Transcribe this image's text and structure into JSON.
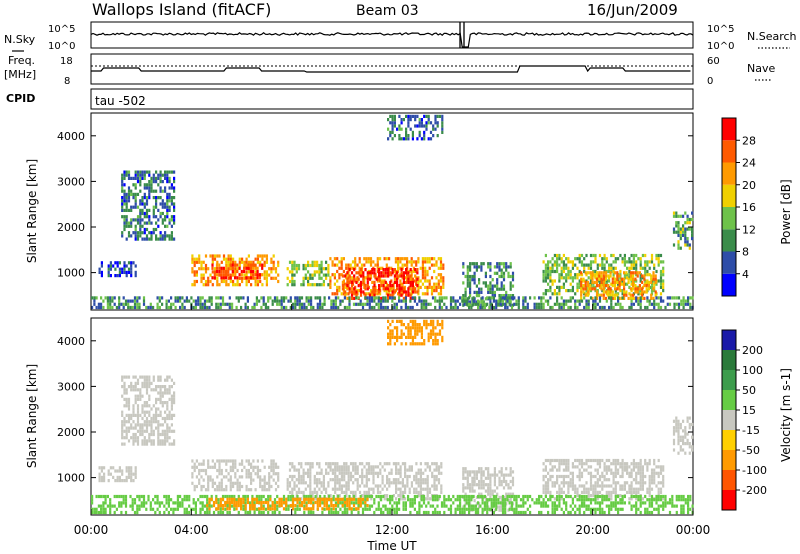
{
  "header": {
    "site": "Wallops Island (fitACF)",
    "beam": "Beam 03",
    "date": "16/Jun/2009"
  },
  "status": {
    "nsky_label": "N.Sky",
    "nsearch_label": "N.Search",
    "noise_ticks": [
      "10^5",
      "10^0"
    ],
    "freq_label_1": "Freq.",
    "freq_label_2": "[MHz]",
    "freq_ticks": [
      "18",
      "8"
    ],
    "nave_label": "Nave",
    "nave_ticks": [
      "60",
      "0"
    ],
    "cpid_label": "CPID",
    "cpid_value": "tau -502"
  },
  "colors": {
    "power_scale": [
      "#0000ff",
      "#2e4da8",
      "#3a8c4a",
      "#6ec24a",
      "#f0d000",
      "#ff9a00",
      "#ff5a00",
      "#ff0000"
    ],
    "velocity_scale": [
      "#1a1aa8",
      "#2a7a3a",
      "#3c9c4c",
      "#66cc44",
      "#c8c8c0",
      "#ffd000",
      "#ff9a00",
      "#ff5500",
      "#ff0000"
    ]
  },
  "chart_data": [
    {
      "type": "line",
      "panel": "noise",
      "series": [
        {
          "name": "N.Sky"
        },
        {
          "name": "N.Search"
        }
      ],
      "xlim": [
        "00:00",
        "24:00"
      ]
    },
    {
      "type": "line",
      "panel": "frequency-nave",
      "series": [
        {
          "name": "Freq."
        },
        {
          "name": "Nave"
        }
      ],
      "ylim_freq": [
        8,
        18
      ],
      "ylim_nave": [
        0,
        60
      ],
      "xlim": [
        "00:00",
        "24:00"
      ]
    },
    {
      "type": "heatmap",
      "panel": "power",
      "ylabel": "Slant Range [km]",
      "yticks": [
        1000,
        2000,
        3000,
        4000
      ],
      "ylim": [
        180,
        4500
      ],
      "colorbar_label": "Power [dB]",
      "colorbar_ticks": [
        "28",
        "24",
        "20",
        "16",
        "12",
        "8",
        "4"
      ],
      "blobs": [
        {
          "t0": 0.3,
          "t1": 1.8,
          "r0": 900,
          "r1": 1250,
          "value": 6
        },
        {
          "t0": 1.2,
          "t1": 3.3,
          "r0": 1700,
          "r1": 3200,
          "value": 8
        },
        {
          "t0": 4.0,
          "t1": 7.5,
          "r0": 700,
          "r1": 1400,
          "value": 22
        },
        {
          "t0": 4.8,
          "t1": 6.8,
          "r0": 850,
          "r1": 1150,
          "value": 27
        },
        {
          "t0": 7.8,
          "t1": 9.5,
          "r0": 700,
          "r1": 1200,
          "value": 14
        },
        {
          "t0": 9.5,
          "t1": 14.0,
          "r0": 500,
          "r1": 1300,
          "value": 22
        },
        {
          "t0": 10.0,
          "t1": 13.0,
          "r0": 400,
          "r1": 1100,
          "value": 28
        },
        {
          "t0": 14.8,
          "t1": 16.8,
          "r0": 250,
          "r1": 1200,
          "value": 10
        },
        {
          "t0": 18.0,
          "t1": 22.8,
          "r0": 500,
          "r1": 1400,
          "value": 14
        },
        {
          "t0": 19.5,
          "t1": 22.5,
          "r0": 400,
          "r1": 1000,
          "value": 22
        },
        {
          "t0": 23.2,
          "t1": 24.0,
          "r0": 1500,
          "r1": 2300,
          "value": 12
        },
        {
          "t0": 0.0,
          "t1": 24.0,
          "r0": 200,
          "r1": 450,
          "value": 10
        },
        {
          "t0": 11.8,
          "t1": 14.0,
          "r0": 3900,
          "r1": 4400,
          "value": 8
        }
      ],
      "xlim": [
        "00:00",
        "24:00"
      ]
    },
    {
      "type": "heatmap",
      "panel": "velocity",
      "ylabel": "Slant Range [km]",
      "yticks": [
        1000,
        2000,
        3000,
        4000
      ],
      "ylim": [
        180,
        4500
      ],
      "colorbar_label": "Velocity [m s-1]",
      "colorbar_ticks": [
        "200",
        "100",
        "50",
        "15",
        "-15",
        "-50",
        "-100",
        "-200"
      ],
      "blobs": [
        {
          "t0": 0.3,
          "t1": 1.8,
          "r0": 900,
          "r1": 1250,
          "value": 0
        },
        {
          "t0": 1.2,
          "t1": 3.3,
          "r0": 1700,
          "r1": 3200,
          "value": 0
        },
        {
          "t0": 4.0,
          "t1": 7.5,
          "r0": 700,
          "r1": 1400,
          "value": 0
        },
        {
          "t0": 7.8,
          "t1": 14.0,
          "r0": 500,
          "r1": 1300,
          "value": 0
        },
        {
          "t0": 14.8,
          "t1": 16.8,
          "r0": 250,
          "r1": 1200,
          "value": 0
        },
        {
          "t0": 18.0,
          "t1": 22.8,
          "r0": 500,
          "r1": 1400,
          "value": 0
        },
        {
          "t0": 23.2,
          "t1": 24.0,
          "r0": 1500,
          "r1": 2300,
          "value": 0
        },
        {
          "t0": 0.0,
          "t1": 24.0,
          "r0": 200,
          "r1": 600,
          "value": 20
        },
        {
          "t0": 4.5,
          "t1": 11.0,
          "r0": 280,
          "r1": 500,
          "value": -40
        },
        {
          "t0": 11.8,
          "t1": 14.0,
          "r0": 3900,
          "r1": 4400,
          "value": -40
        }
      ],
      "xlabel": "Time UT",
      "xticks": [
        "00:00",
        "04:00",
        "08:00",
        "12:00",
        "16:00",
        "20:00",
        "00:00"
      ],
      "xlim": [
        "00:00",
        "24:00"
      ]
    }
  ]
}
